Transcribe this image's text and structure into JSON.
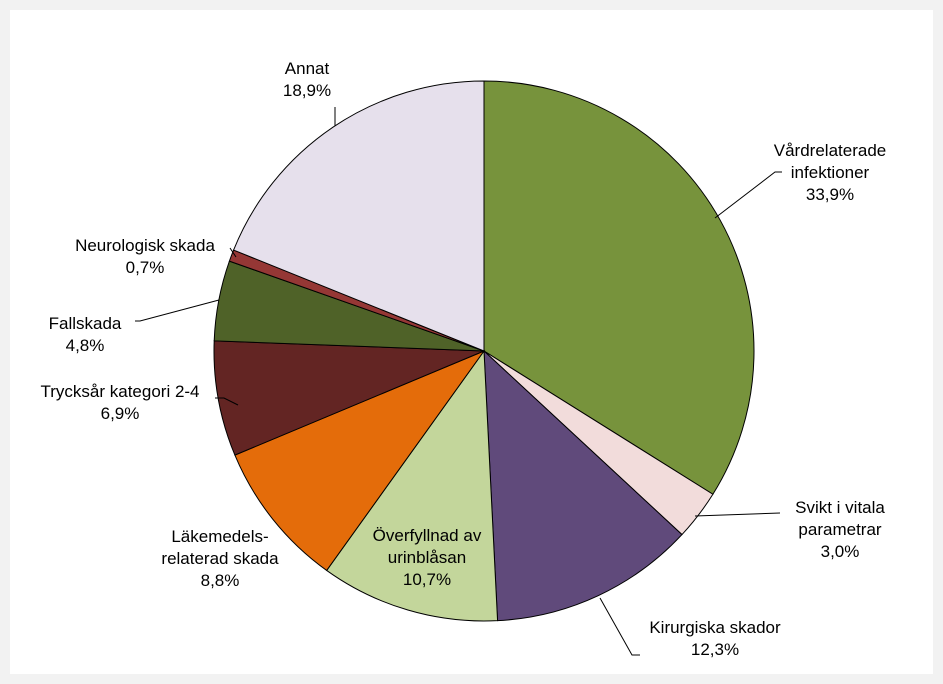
{
  "chart_data": {
    "type": "pie",
    "categories": [
      "Vårdrelaterade infektioner",
      "Svikt i vitala parametrar",
      "Kirurgiska skador",
      "Överfyllnad av urinblåsan",
      "Läkemedels-relaterad skada",
      "Trycksår kategori 2-4",
      "Fallskada",
      "Neurologisk skada",
      "Annat"
    ],
    "values": [
      33.9,
      3.0,
      12.3,
      10.7,
      8.8,
      6.9,
      4.8,
      0.7,
      18.9
    ],
    "value_labels": [
      "33,9%",
      "3,0%",
      "12,3%",
      "10,7%",
      "8,8%",
      "6,9%",
      "4,8%",
      "0,7%",
      "18,9%"
    ],
    "colors": [
      "#77933c",
      "#f2dcdb",
      "#604a7b",
      "#c3d69b",
      "#e46c0a",
      "#632523",
      "#4f6228",
      "#953735",
      "#e6e0ec"
    ]
  }
}
